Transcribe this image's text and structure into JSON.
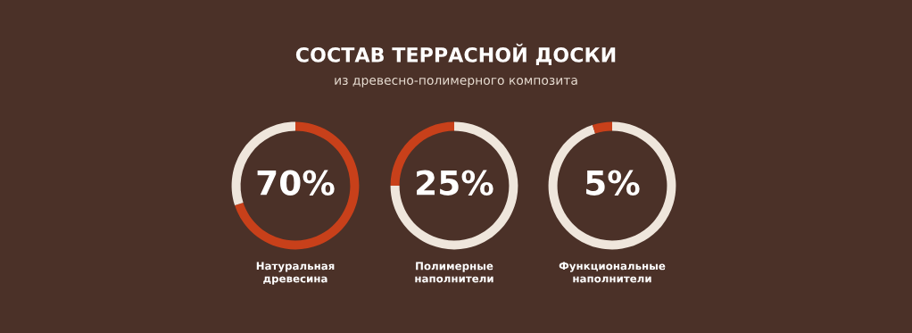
{
  "chart_data": [
    {
      "type": "donut",
      "xlabel": "Натуральная\nдревесина",
      "categories": [
        null,
        null
      ],
      "values": [
        70,
        30
      ],
      "colors": [
        "#c8401a",
        "#efe6dc"
      ],
      "value_labels": [
        "70%",
        null
      ]
    },
    {
      "type": "donut",
      "title": "СОСТАВ ТЕРРАСНОЙ ДОСКИ",
      "subtitle": "из древесно-полимерного композита",
      "xlabel": "Полимерные\nнаполнители",
      "categories": [
        null,
        null
      ],
      "values": [
        75,
        25
      ],
      "colors": [
        "#efe6dc",
        "#c8401a"
      ],
      "value_labels": [
        null,
        "25%"
      ]
    },
    {
      "type": "donut",
      "xlabel": "Функциональные\nнаполнители",
      "categories": [
        null,
        null
      ],
      "values": [
        95,
        5
      ],
      "colors": [
        "#efe6dc",
        "#c8401a"
      ],
      "value_labels": [
        null,
        "5%"
      ]
    }
  ]
}
